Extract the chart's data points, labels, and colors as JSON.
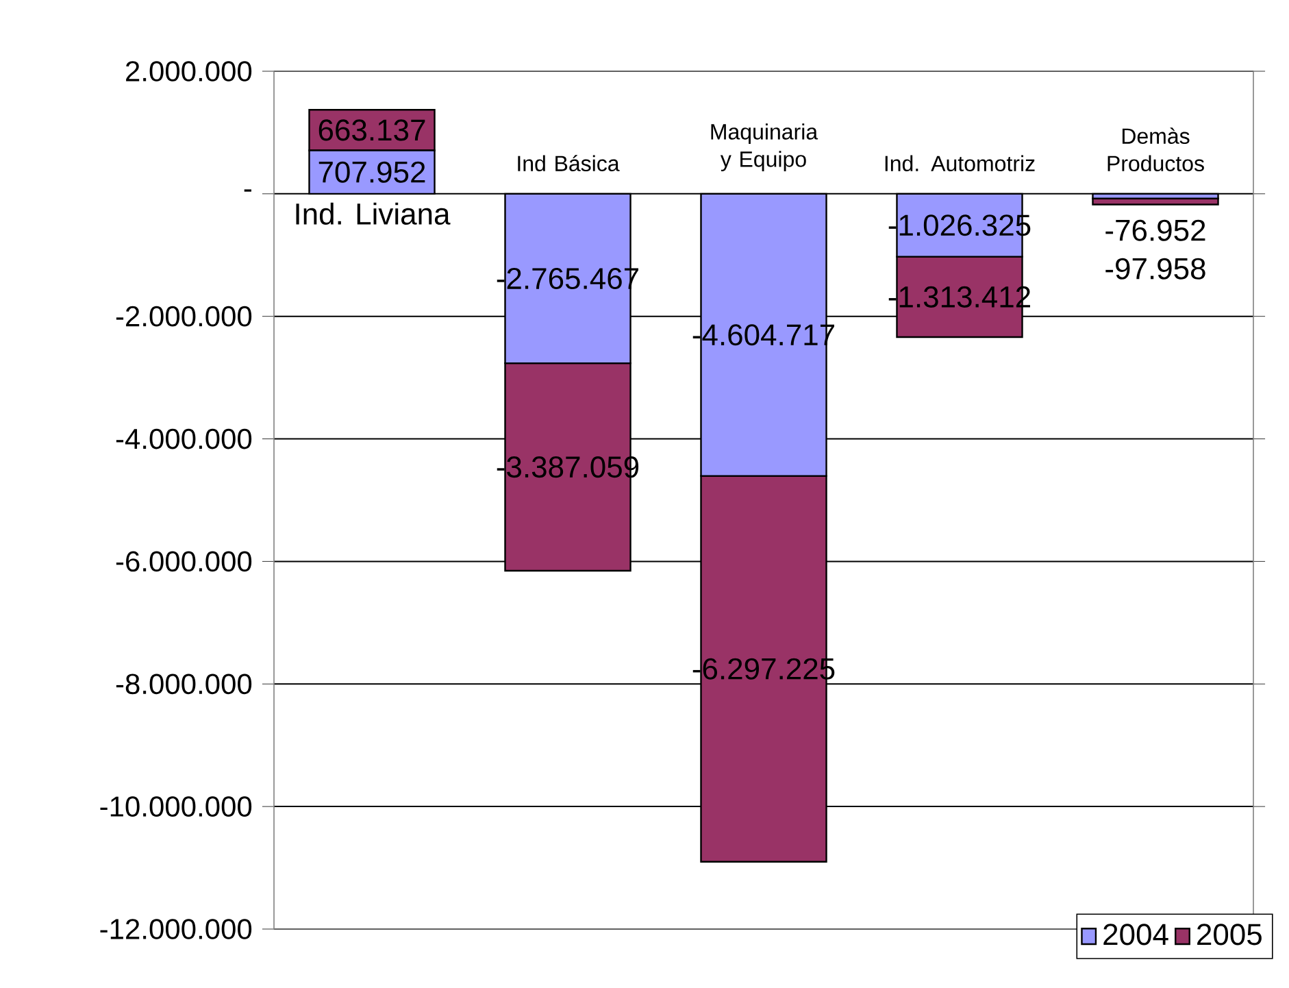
{
  "chart_data": {
    "type": "bar",
    "stacked": true,
    "categories": [
      "Ind. Liviana",
      "Ind Básica",
      "Maquinaria y Equipo",
      "Ind. Automotriz",
      "Demàs Productos"
    ],
    "series": [
      {
        "name": "2004",
        "color": "#9999ff",
        "values": [
          707952,
          -2765467,
          -4604717,
          -1026325,
          -76952
        ],
        "value_labels": [
          "707.952",
          "-2.765.467",
          "-4.604.717",
          "-1.026.325",
          "-76.952"
        ]
      },
      {
        "name": "2005",
        "color": "#993366",
        "values": [
          663137,
          -3387059,
          -6297225,
          -1313412,
          -97958
        ],
        "value_labels": [
          "663.137",
          "-3.387.059",
          "-6.297.225",
          "-1.313.412",
          "-97.958"
        ]
      }
    ],
    "ylim": [
      -12000000,
      2000000
    ],
    "yticks": [
      {
        "value": 2000000,
        "label": "2.000.000"
      },
      {
        "value": 0,
        "label": "-"
      },
      {
        "value": -2000000,
        "label": "-2.000.000"
      },
      {
        "value": -4000000,
        "label": "-4.000.000"
      },
      {
        "value": -6000000,
        "label": "-6.000.000"
      },
      {
        "value": -8000000,
        "label": "-8.000.000"
      },
      {
        "value": -10000000,
        "label": "-10.000.000"
      },
      {
        "value": -12000000,
        "label": "-12.000.000"
      }
    ],
    "grid": "y",
    "legend": "bottom right"
  }
}
